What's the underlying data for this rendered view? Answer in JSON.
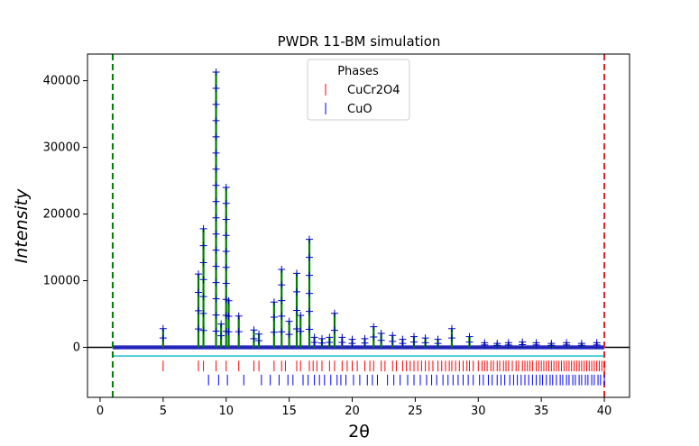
{
  "chart_data": {
    "type": "line",
    "title": "PWDR 11-BM simulation",
    "xlabel": "2θ",
    "ylabel": "Intensity",
    "xlim": [
      -1,
      42
    ],
    "ylim": [
      -7500,
      44000
    ],
    "xticks": [
      0,
      5,
      10,
      15,
      20,
      25,
      30,
      35,
      40
    ],
    "yticks": [
      0,
      10000,
      20000,
      30000,
      40000
    ],
    "x_limits_markers": [
      {
        "x": 1.0,
        "color": "#008000"
      },
      {
        "x": 40.0,
        "color": "#d62728"
      }
    ],
    "background_offset": -1300,
    "peaks": [
      {
        "x": 5.0,
        "y": 2800
      },
      {
        "x": 7.8,
        "y": 11000
      },
      {
        "x": 8.2,
        "y": 17800
      },
      {
        "x": 9.2,
        "y": 41300
      },
      {
        "x": 9.6,
        "y": 3500
      },
      {
        "x": 10.0,
        "y": 24000
      },
      {
        "x": 10.2,
        "y": 7000
      },
      {
        "x": 11.0,
        "y": 4700
      },
      {
        "x": 12.2,
        "y": 2600
      },
      {
        "x": 12.6,
        "y": 2000
      },
      {
        "x": 13.8,
        "y": 6800
      },
      {
        "x": 14.4,
        "y": 11700
      },
      {
        "x": 15.0,
        "y": 3900
      },
      {
        "x": 15.6,
        "y": 11100
      },
      {
        "x": 15.9,
        "y": 4800
      },
      {
        "x": 16.6,
        "y": 16200
      },
      {
        "x": 17.0,
        "y": 1500
      },
      {
        "x": 17.6,
        "y": 1300
      },
      {
        "x": 18.2,
        "y": 1500
      },
      {
        "x": 18.6,
        "y": 5100
      },
      {
        "x": 19.2,
        "y": 1500
      },
      {
        "x": 20.0,
        "y": 1200
      },
      {
        "x": 21.0,
        "y": 1300
      },
      {
        "x": 21.7,
        "y": 3100
      },
      {
        "x": 22.3,
        "y": 2100
      },
      {
        "x": 23.2,
        "y": 1800
      },
      {
        "x": 24.0,
        "y": 1200
      },
      {
        "x": 24.9,
        "y": 1600
      },
      {
        "x": 25.8,
        "y": 1400
      },
      {
        "x": 26.8,
        "y": 1200
      },
      {
        "x": 27.9,
        "y": 2800
      },
      {
        "x": 29.3,
        "y": 1600
      },
      {
        "x": 30.5,
        "y": 700
      },
      {
        "x": 31.5,
        "y": 600
      },
      {
        "x": 32.4,
        "y": 700
      },
      {
        "x": 33.5,
        "y": 800
      },
      {
        "x": 34.6,
        "y": 700
      },
      {
        "x": 35.8,
        "y": 600
      },
      {
        "x": 37.0,
        "y": 700
      },
      {
        "x": 38.2,
        "y": 600
      },
      {
        "x": 39.4,
        "y": 700
      }
    ],
    "series": [
      {
        "name": "CuCr2O4",
        "color": "#ff0000",
        "y": -2800,
        "reflections": [
          5.0,
          7.8,
          8.2,
          9.2,
          10.0,
          11.0,
          12.2,
          12.6,
          13.8,
          14.4,
          14.7,
          15.6,
          15.9,
          16.6,
          16.9,
          17.2,
          17.6,
          18.2,
          18.6,
          19.2,
          19.6,
          20.0,
          20.4,
          21.0,
          21.4,
          21.7,
          22.3,
          22.6,
          23.2,
          23.5,
          24.0,
          24.3,
          24.6,
          24.9,
          25.2,
          25.5,
          25.8,
          26.1,
          26.4,
          26.8,
          27.1,
          27.4,
          27.7,
          27.9,
          28.2,
          28.5,
          28.8,
          29.1,
          29.3,
          29.6,
          30.0,
          30.3,
          30.5,
          30.7,
          31.0,
          31.2,
          31.5,
          31.7,
          32.0,
          32.2,
          32.4,
          32.7,
          33.0,
          33.2,
          33.5,
          33.7,
          33.9,
          34.1,
          34.3,
          34.6,
          34.8,
          35.0,
          35.2,
          35.4,
          35.6,
          35.8,
          36.0,
          36.2,
          36.4,
          36.6,
          36.8,
          37.0,
          37.2,
          37.4,
          37.6,
          37.8,
          38.0,
          38.2,
          38.4,
          38.6,
          38.8,
          39.0,
          39.2,
          39.4,
          39.6,
          39.8,
          40.0
        ]
      },
      {
        "name": "CuO",
        "color": "#0000ff",
        "y": -4900,
        "reflections": [
          8.6,
          9.4,
          10.1,
          11.4,
          12.8,
          13.5,
          14.2,
          14.9,
          15.3,
          16.1,
          16.5,
          17.0,
          17.4,
          17.8,
          18.3,
          18.8,
          19.1,
          19.5,
          20.1,
          20.6,
          21.2,
          21.6,
          22.0,
          22.8,
          23.3,
          23.8,
          24.4,
          24.9,
          25.4,
          25.9,
          26.3,
          26.7,
          27.2,
          27.6,
          28.0,
          28.4,
          28.8,
          29.2,
          29.6,
          30.1,
          30.4,
          30.8,
          31.1,
          31.5,
          31.8,
          32.1,
          32.5,
          32.8,
          33.1,
          33.4,
          33.7,
          34.0,
          34.3,
          34.6,
          34.9,
          35.1,
          35.4,
          35.7,
          35.9,
          36.2,
          36.5,
          36.7,
          37.0,
          37.2,
          37.5,
          37.7,
          38.0,
          38.2,
          38.5,
          38.7,
          39.0,
          39.2,
          39.5,
          39.7,
          40.0
        ]
      }
    ],
    "legend": {
      "title": "Phases",
      "position": "top-center"
    }
  }
}
